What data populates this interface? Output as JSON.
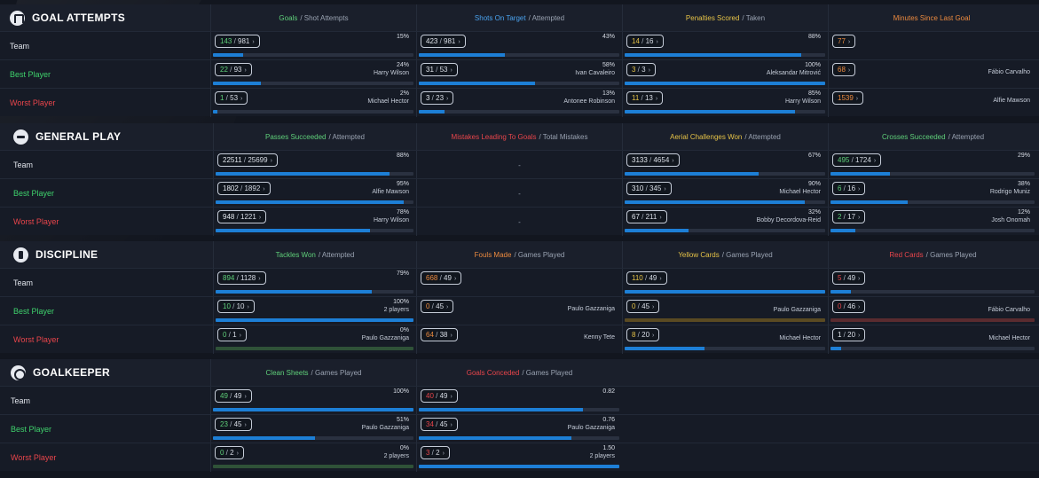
{
  "sections": [
    {
      "key": "goal_attempts",
      "title": "GOAL ATTEMPTS",
      "icon": "goal-icon",
      "top": 5,
      "label_left": 11,
      "cols": [
        {
          "left": 237,
          "width": 232,
          "head_hl": "Goals",
          "head_hl_color": "c-green",
          "head_rest": "/ Shot Attempts"
        },
        {
          "left": 469,
          "width": 232,
          "head_hl": "Shots On Target",
          "head_hl_color": "c-blue",
          "head_rest": "/ Attempted"
        },
        {
          "left": 701,
          "width": 232,
          "head_hl": "Penalties Scored",
          "head_hl_color": "c-yellow",
          "head_rest": "/ Taken"
        },
        {
          "left": 933,
          "width": 236,
          "head_hl": "Minutes Since Last Goal",
          "head_hl_color": "c-orange",
          "head_rest": ""
        }
      ],
      "rows": [
        {
          "label": "Team",
          "label_class": "lbl-team",
          "cells": [
            {
              "value": "143",
              "total": "981",
              "color": "c-green",
              "pct": "15%",
              "name": "",
              "fill": 0.15
            },
            {
              "value": "423",
              "total": "981",
              "color": "c-white",
              "pct": "43%",
              "name": "",
              "fill": 0.43
            },
            {
              "value": "14",
              "total": "16",
              "color": "c-yellow",
              "pct": "88%",
              "name": "",
              "fill": 0.88
            },
            {
              "value": "77",
              "total": "",
              "color": "c-orange",
              "pct": "",
              "name": "",
              "fill": null
            }
          ]
        },
        {
          "label": "Best Player",
          "label_class": "lbl-best",
          "cells": [
            {
              "value": "22",
              "total": "93",
              "color": "c-green",
              "pct": "24%",
              "name": "Harry Wilson",
              "fill": 0.24
            },
            {
              "value": "31",
              "total": "53",
              "color": "c-white",
              "pct": "58%",
              "name": "Ivan Cavaleiro",
              "fill": 0.58
            },
            {
              "value": "3",
              "total": "3",
              "color": "c-yellow",
              "pct": "100%",
              "name": "Aleksandar Mitrović",
              "fill": 1.0
            },
            {
              "value": "68",
              "total": "",
              "color": "c-orange",
              "pct": "",
              "name": "Fábio Carvalho",
              "fill": null
            }
          ]
        },
        {
          "label": "Worst Player",
          "label_class": "lbl-worst",
          "cells": [
            {
              "value": "1",
              "total": "53",
              "color": "c-green",
              "pct": "2%",
              "name": "Michael Hector",
              "fill": 0.02
            },
            {
              "value": "3",
              "total": "23",
              "color": "c-white",
              "pct": "13%",
              "name": "Antonee Robinson",
              "fill": 0.13
            },
            {
              "value": "11",
              "total": "13",
              "color": "c-yellow",
              "pct": "85%",
              "name": "Harry Wilson",
              "fill": 0.85
            },
            {
              "value": "1539",
              "total": "",
              "color": "c-orange",
              "pct": "",
              "name": "Alfie Mawson",
              "fill": null
            }
          ]
        }
      ]
    },
    {
      "key": "general_play",
      "title": "GENERAL PLAY",
      "icon": "general-play-icon",
      "top": 139,
      "label_left": 15,
      "cols": [
        {
          "left": 240,
          "width": 229,
          "head_hl": "Passes Succeeded",
          "head_hl_color": "c-green",
          "head_rest": "/ Attempted"
        },
        {
          "left": 469,
          "width": 232,
          "head_hl": "Mistakes Leading To Goals",
          "head_hl_color": "c-red",
          "head_rest": "/ Total Mistakes"
        },
        {
          "left": 701,
          "width": 232,
          "head_hl": "Aerial Challenges Won",
          "head_hl_color": "c-yellow",
          "head_rest": "/ Attempted"
        },
        {
          "left": 933,
          "width": 236,
          "head_hl": "Crosses Succeeded",
          "head_hl_color": "c-green",
          "head_rest": "/ Attempted"
        }
      ],
      "rows": [
        {
          "label": "Team",
          "label_class": "lbl-team",
          "cells": [
            {
              "value": "22511",
              "total": "25699",
              "color": "c-white",
              "pct": "88%",
              "name": "",
              "fill": 0.88
            },
            {
              "dash": "-"
            },
            {
              "value": "3133",
              "total": "4654",
              "color": "c-white",
              "pct": "67%",
              "name": "",
              "fill": 0.67
            },
            {
              "value": "495",
              "total": "1724",
              "color": "c-green",
              "pct": "29%",
              "name": "",
              "fill": 0.29
            }
          ]
        },
        {
          "label": "Best Player",
          "label_class": "lbl-best",
          "cells": [
            {
              "value": "1802",
              "total": "1892",
              "color": "c-white",
              "pct": "95%",
              "name": "Alfie Mawson",
              "fill": 0.95
            },
            {
              "dash": "-"
            },
            {
              "value": "310",
              "total": "345",
              "color": "c-white",
              "pct": "90%",
              "name": "Michael Hector",
              "fill": 0.9
            },
            {
              "value": "6",
              "total": "16",
              "color": "c-green",
              "pct": "38%",
              "name": "Rodrigo Muniz",
              "fill": 0.38
            }
          ]
        },
        {
          "label": "Worst Player",
          "label_class": "lbl-worst",
          "cells": [
            {
              "value": "948",
              "total": "1221",
              "color": "c-white",
              "pct": "78%",
              "name": "Harry Wilson",
              "fill": 0.78
            },
            {
              "dash": "-"
            },
            {
              "value": "67",
              "total": "211",
              "color": "c-white",
              "pct": "32%",
              "name": "Bobby Decordova-Reid",
              "fill": 0.32
            },
            {
              "value": "2",
              "total": "17",
              "color": "c-green",
              "pct": "12%",
              "name": "Josh Onomah",
              "fill": 0.12
            }
          ]
        }
      ]
    },
    {
      "key": "discipline",
      "title": "DISCIPLINE",
      "icon": "discipline-icon",
      "top": 272,
      "label_left": 15,
      "cols": [
        {
          "left": 240,
          "width": 229,
          "head_hl": "Tackles Won",
          "head_hl_color": "c-green",
          "head_rest": "/ Attempted"
        },
        {
          "left": 469,
          "width": 232,
          "head_hl": "Fouls Made",
          "head_hl_color": "c-orange",
          "head_rest": "/ Games Played"
        },
        {
          "left": 701,
          "width": 232,
          "head_hl": "Yellow Cards",
          "head_hl_color": "c-yellow",
          "head_rest": "/ Games Played"
        },
        {
          "left": 933,
          "width": 236,
          "head_hl": "Red Cards",
          "head_hl_color": "c-red",
          "head_rest": "/ Games Played"
        }
      ],
      "rows": [
        {
          "label": "Team",
          "label_class": "lbl-team",
          "cells": [
            {
              "value": "894",
              "total": "1128",
              "color": "c-green",
              "pct": "79%",
              "name": "",
              "fill": 0.79
            },
            {
              "value": "668",
              "total": "49",
              "color": "c-orange",
              "pct": "",
              "name": "",
              "fill": null
            },
            {
              "value": "110",
              "total": "49",
              "color": "c-yellow",
              "pct": "",
              "name": "",
              "fill": 1.0
            },
            {
              "value": "5",
              "total": "49",
              "color": "c-red",
              "pct": "",
              "name": "",
              "fill": 0.1
            }
          ]
        },
        {
          "label": "Best Player",
          "label_class": "lbl-best",
          "cells": [
            {
              "value": "10",
              "total": "10",
              "color": "c-green",
              "pct": "100%",
              "name": "2 players",
              "fill": 1.0
            },
            {
              "value": "0",
              "total": "45",
              "color": "c-orange",
              "pct": "",
              "name": "Paulo Gazzaniga",
              "fill": null
            },
            {
              "value": "0",
              "total": "45",
              "color": "c-yellow",
              "pct": "",
              "name": "Paulo Gazzaniga",
              "fill": 0,
              "track_color": "#5a4a22"
            },
            {
              "value": "0",
              "total": "46",
              "color": "c-red",
              "pct": "",
              "name": "Fábio Carvalho",
              "fill": 0,
              "track_color": "#5a2b2f"
            }
          ]
        },
        {
          "label": "Worst Player",
          "label_class": "lbl-worst",
          "cells": [
            {
              "value": "0",
              "total": "1",
              "color": "c-green",
              "pct": "0%",
              "name": "Paulo Gazzaniga",
              "fill": 0,
              "track_color": "#2f5238"
            },
            {
              "value": "64",
              "total": "38",
              "color": "c-orange",
              "pct": "",
              "name": "Kenny Tete",
              "fill": null
            },
            {
              "value": "8",
              "total": "20",
              "color": "c-yellow",
              "pct": "",
              "name": "Michael Hector",
              "fill": 0.4
            },
            {
              "value": "1",
              "total": "20",
              "color": "c-white",
              "pct": "",
              "name": "Michael Hector",
              "fill": 0.05
            }
          ]
        }
      ]
    },
    {
      "key": "goalkeeper",
      "title": "GOALKEEPER",
      "icon": "goalkeeper-icon",
      "top": 405,
      "label_left": 12,
      "cols": [
        {
          "left": 237,
          "width": 232,
          "head_hl": "Clean Sheets",
          "head_hl_color": "c-green",
          "head_rest": "/ Games Played"
        },
        {
          "left": 469,
          "width": 232,
          "head_hl": "Goals Conceded",
          "head_hl_color": "c-red",
          "head_rest": "/ Games Played"
        }
      ],
      "rows": [
        {
          "label": "Team",
          "label_class": "lbl-team",
          "cells": [
            {
              "value": "49",
              "total": "49",
              "color": "c-green",
              "pct": "100%",
              "name": "",
              "fill": 1.0
            },
            {
              "value": "40",
              "total": "49",
              "color": "c-red",
              "pct": "0.82",
              "name": "",
              "fill": 0.82
            }
          ]
        },
        {
          "label": "Best Player",
          "label_class": "lbl-best",
          "cells": [
            {
              "value": "23",
              "total": "45",
              "color": "c-green",
              "pct": "51%",
              "name": "Paulo Gazzaniga",
              "fill": 0.51
            },
            {
              "value": "34",
              "total": "45",
              "color": "c-red",
              "pct": "0.76",
              "name": "Paulo Gazzaniga",
              "fill": 0.76
            }
          ]
        },
        {
          "label": "Worst Player",
          "label_class": "lbl-worst",
          "cells": [
            {
              "value": "0",
              "total": "2",
              "color": "c-green",
              "pct": "0%",
              "name": "2 players",
              "fill": 0,
              "track_color": "#2f5238"
            },
            {
              "value": "3",
              "total": "2",
              "color": "c-red",
              "pct": "1.50",
              "name": "2 players",
              "fill": 1.0
            }
          ]
        }
      ]
    }
  ]
}
